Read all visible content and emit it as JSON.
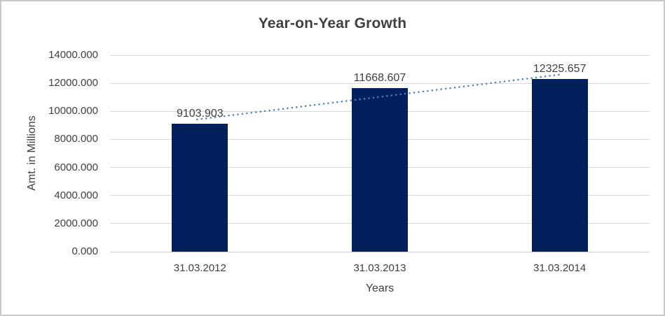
{
  "chart_data": {
    "type": "bar",
    "title": "Year-on-Year Growth",
    "xlabel": "Years",
    "ylabel": "Amt. in Millions",
    "categories": [
      "31.03.2012",
      "31.03.2013",
      "31.03.2014"
    ],
    "values": [
      9103.903,
      11668.607,
      12325.657
    ],
    "data_labels": [
      "9103.903",
      "11668.607",
      "12325.657"
    ],
    "ylim": [
      0,
      14000
    ],
    "y_tick_step": 2000,
    "y_tick_labels": [
      "0.000",
      "2000.000",
      "4000.000",
      "6000.000",
      "8000.000",
      "10000.000",
      "12000.000",
      "14000.000"
    ],
    "grid": true,
    "legend": "none",
    "trendline": {
      "fit": "linear",
      "style": "dotted",
      "color": "#4a80c4"
    },
    "colors": {
      "bar": "#02215c",
      "gridline": "#d9d9d9",
      "axis_line": "#d0d0d0",
      "text": "#404040",
      "title": "#404040",
      "background": "#ffffff",
      "border": "#c9c9c9"
    }
  }
}
